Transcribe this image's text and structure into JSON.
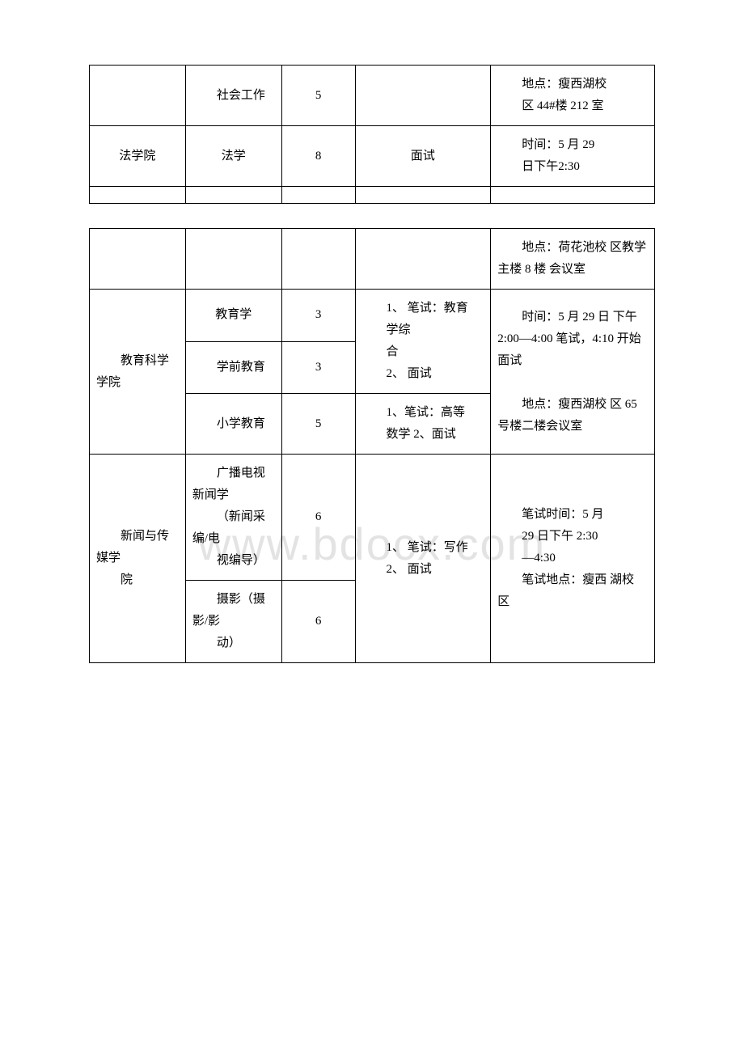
{
  "watermark": "www.bdocx.com",
  "table1": {
    "rows": [
      {
        "col1": "",
        "col2_indent": "社会工作",
        "col3": "5",
        "col4": "",
        "col5_line1": "地点：瘦西湖校",
        "col5_line2": "区 44#楼 212 室"
      },
      {
        "col1": "法学院",
        "col2": "法学",
        "col3": "8",
        "col4": "面试",
        "col5_line1": "时间：5 月 29",
        "col5_line2": "日下午2:30"
      },
      {
        "col1": "",
        "col2": "",
        "col3": "",
        "col4": "",
        "col5": ""
      }
    ]
  },
  "table2": {
    "row1": {
      "col1": "",
      "col2": "",
      "col3": "",
      "col4": "",
      "col5_line1": "地点：荷花池校 区教学主楼 8 楼 会议室"
    },
    "edu_college": "教育科学学院",
    "edu_row1": {
      "major": "教育学",
      "count": "3"
    },
    "edu_exam1_line1": "1、 笔试：教育",
    "edu_exam1_line2": "学综",
    "edu_exam1_line3": "合",
    "edu_exam1_line4": "2、 面试",
    "edu_row2": {
      "major": "学前教育",
      "count": "3"
    },
    "edu_row3": {
      "major": "小学教育",
      "count": "5"
    },
    "edu_exam3_line1": "1、笔试：高等",
    "edu_exam3_line2": "数学 2、面试",
    "edu_time_line1": "时间：5 月 29 日 下午 2:00—4:00 笔试，4:10 开始 面试",
    "edu_time_line2": "地点：瘦西湖校 区 65 号楼二楼会议室",
    "media_college": "新闻与传媒学",
    "media_college2": "院",
    "media_row1": {
      "major_line1": "广播电视新闻学",
      "major_line2": "（新闻采编/电",
      "major_line3": "视编导）",
      "count": "6"
    },
    "media_row2": {
      "major_line1": "摄影（摄影/影",
      "major_line2": "动）",
      "count": "6"
    },
    "media_exam_line1": "1、 笔试：写作",
    "media_exam_line2": "2、 面试",
    "media_time_line1": "笔试时间：5 月",
    "media_time_line2": "29 日下午 2:30",
    "media_time_line3": "—4:30",
    "media_time_line4": "笔试地点：瘦西 湖校 区"
  }
}
